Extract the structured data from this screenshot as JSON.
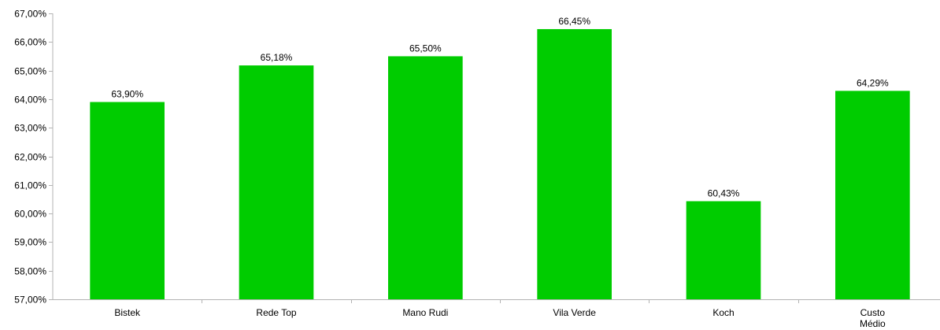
{
  "chart_data": {
    "type": "bar",
    "title": "",
    "xlabel": "",
    "ylabel": "",
    "categories": [
      [
        "Bistek"
      ],
      [
        "Rede Top"
      ],
      [
        "Mano Rudi"
      ],
      [
        "Vila Verde"
      ],
      [
        "Koch"
      ],
      [
        "Custo",
        "Médio"
      ]
    ],
    "values": [
      63.9,
      65.18,
      65.5,
      66.45,
      60.43,
      64.29
    ],
    "value_labels": [
      "63,90%",
      "65,18%",
      "65,50%",
      "66,45%",
      "60,43%",
      "64,29%"
    ],
    "ylim": [
      57,
      67
    ],
    "yticks": [
      57,
      58,
      59,
      60,
      61,
      62,
      63,
      64,
      65,
      66,
      67
    ],
    "ytick_labels": [
      "57,00%",
      "58,00%",
      "59,00%",
      "60,00%",
      "61,00%",
      "62,00%",
      "63,00%",
      "64,00%",
      "65,00%",
      "66,00%",
      "67,00%"
    ],
    "bar_color": "#00cc00",
    "axis_color": "#b3b3b3",
    "grid": false,
    "legend": "none"
  }
}
